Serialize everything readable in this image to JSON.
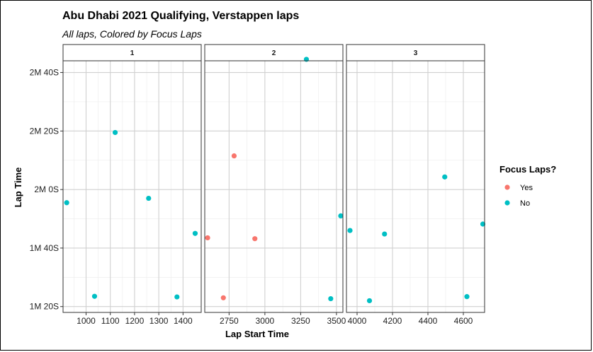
{
  "chart_data": {
    "type": "scatter",
    "title": "Abu Dhabi 2021 Qualifying, Verstappen laps",
    "subtitle": "All laps, Colored by Focus Laps",
    "xlabel": "Lap Start Time",
    "ylabel": "Lap Time",
    "ylim": [
      78,
      164
    ],
    "y_ticks": [
      {
        "value": 80,
        "label": "1M 20S"
      },
      {
        "value": 100,
        "label": "1M 40S"
      },
      {
        "value": 120,
        "label": "2M 0S"
      },
      {
        "value": 140,
        "label": "2M 20S"
      },
      {
        "value": 160,
        "label": "2M 40S"
      }
    ],
    "grid": true,
    "legend": {
      "title": "Focus Laps?",
      "placement": "right",
      "entries": [
        {
          "label": "Yes",
          "color": "#F8766D"
        },
        {
          "label": "No",
          "color": "#00BFC4"
        }
      ]
    },
    "facets": [
      {
        "label": "1",
        "xlim": [
          905,
          1475
        ],
        "x_ticks": [
          900,
          1000,
          1100,
          1200,
          1300,
          1400
        ],
        "x_tick_labels": [
          "900",
          "1000",
          "1100",
          "1200",
          "1300",
          "1400"
        ],
        "points": [
          {
            "x": 920,
            "y": 115.5,
            "focus": "No"
          },
          {
            "x": 1035,
            "y": 83.5,
            "focus": "No"
          },
          {
            "x": 1120,
            "y": 139.5,
            "focus": "No"
          },
          {
            "x": 1258,
            "y": 117,
            "focus": "No"
          },
          {
            "x": 1375,
            "y": 83.3,
            "focus": "No"
          },
          {
            "x": 1450,
            "y": 105,
            "focus": "No"
          }
        ]
      },
      {
        "label": "2",
        "xlim": [
          2580,
          3545
        ],
        "x_ticks": [
          2750,
          3000,
          3250,
          3500
        ],
        "x_tick_labels": [
          "2750",
          "3000",
          "3250",
          "3500"
        ],
        "points": [
          {
            "x": 2600,
            "y": 103.5,
            "focus": "Yes"
          },
          {
            "x": 2710,
            "y": 83,
            "focus": "Yes"
          },
          {
            "x": 2785,
            "y": 131.5,
            "focus": "Yes"
          },
          {
            "x": 2930,
            "y": 103.2,
            "focus": "Yes"
          },
          {
            "x": 3290,
            "y": 164.5,
            "focus": "No"
          },
          {
            "x": 3460,
            "y": 82.7,
            "focus": "No"
          },
          {
            "x": 3530,
            "y": 111,
            "focus": "No"
          }
        ]
      },
      {
        "label": "3",
        "xlim": [
          3940,
          4720
        ],
        "x_ticks": [
          4000,
          4200,
          4400,
          4600
        ],
        "x_tick_labels": [
          "4000",
          "4200",
          "4400",
          "4600"
        ],
        "points": [
          {
            "x": 3960,
            "y": 106,
            "focus": "No"
          },
          {
            "x": 4070,
            "y": 82,
            "focus": "No"
          },
          {
            "x": 4155,
            "y": 104.8,
            "focus": "No"
          },
          {
            "x": 4495,
            "y": 124.3,
            "focus": "No"
          },
          {
            "x": 4620,
            "y": 83.4,
            "focus": "No"
          },
          {
            "x": 4710,
            "y": 108.2,
            "focus": "No"
          }
        ]
      }
    ]
  }
}
